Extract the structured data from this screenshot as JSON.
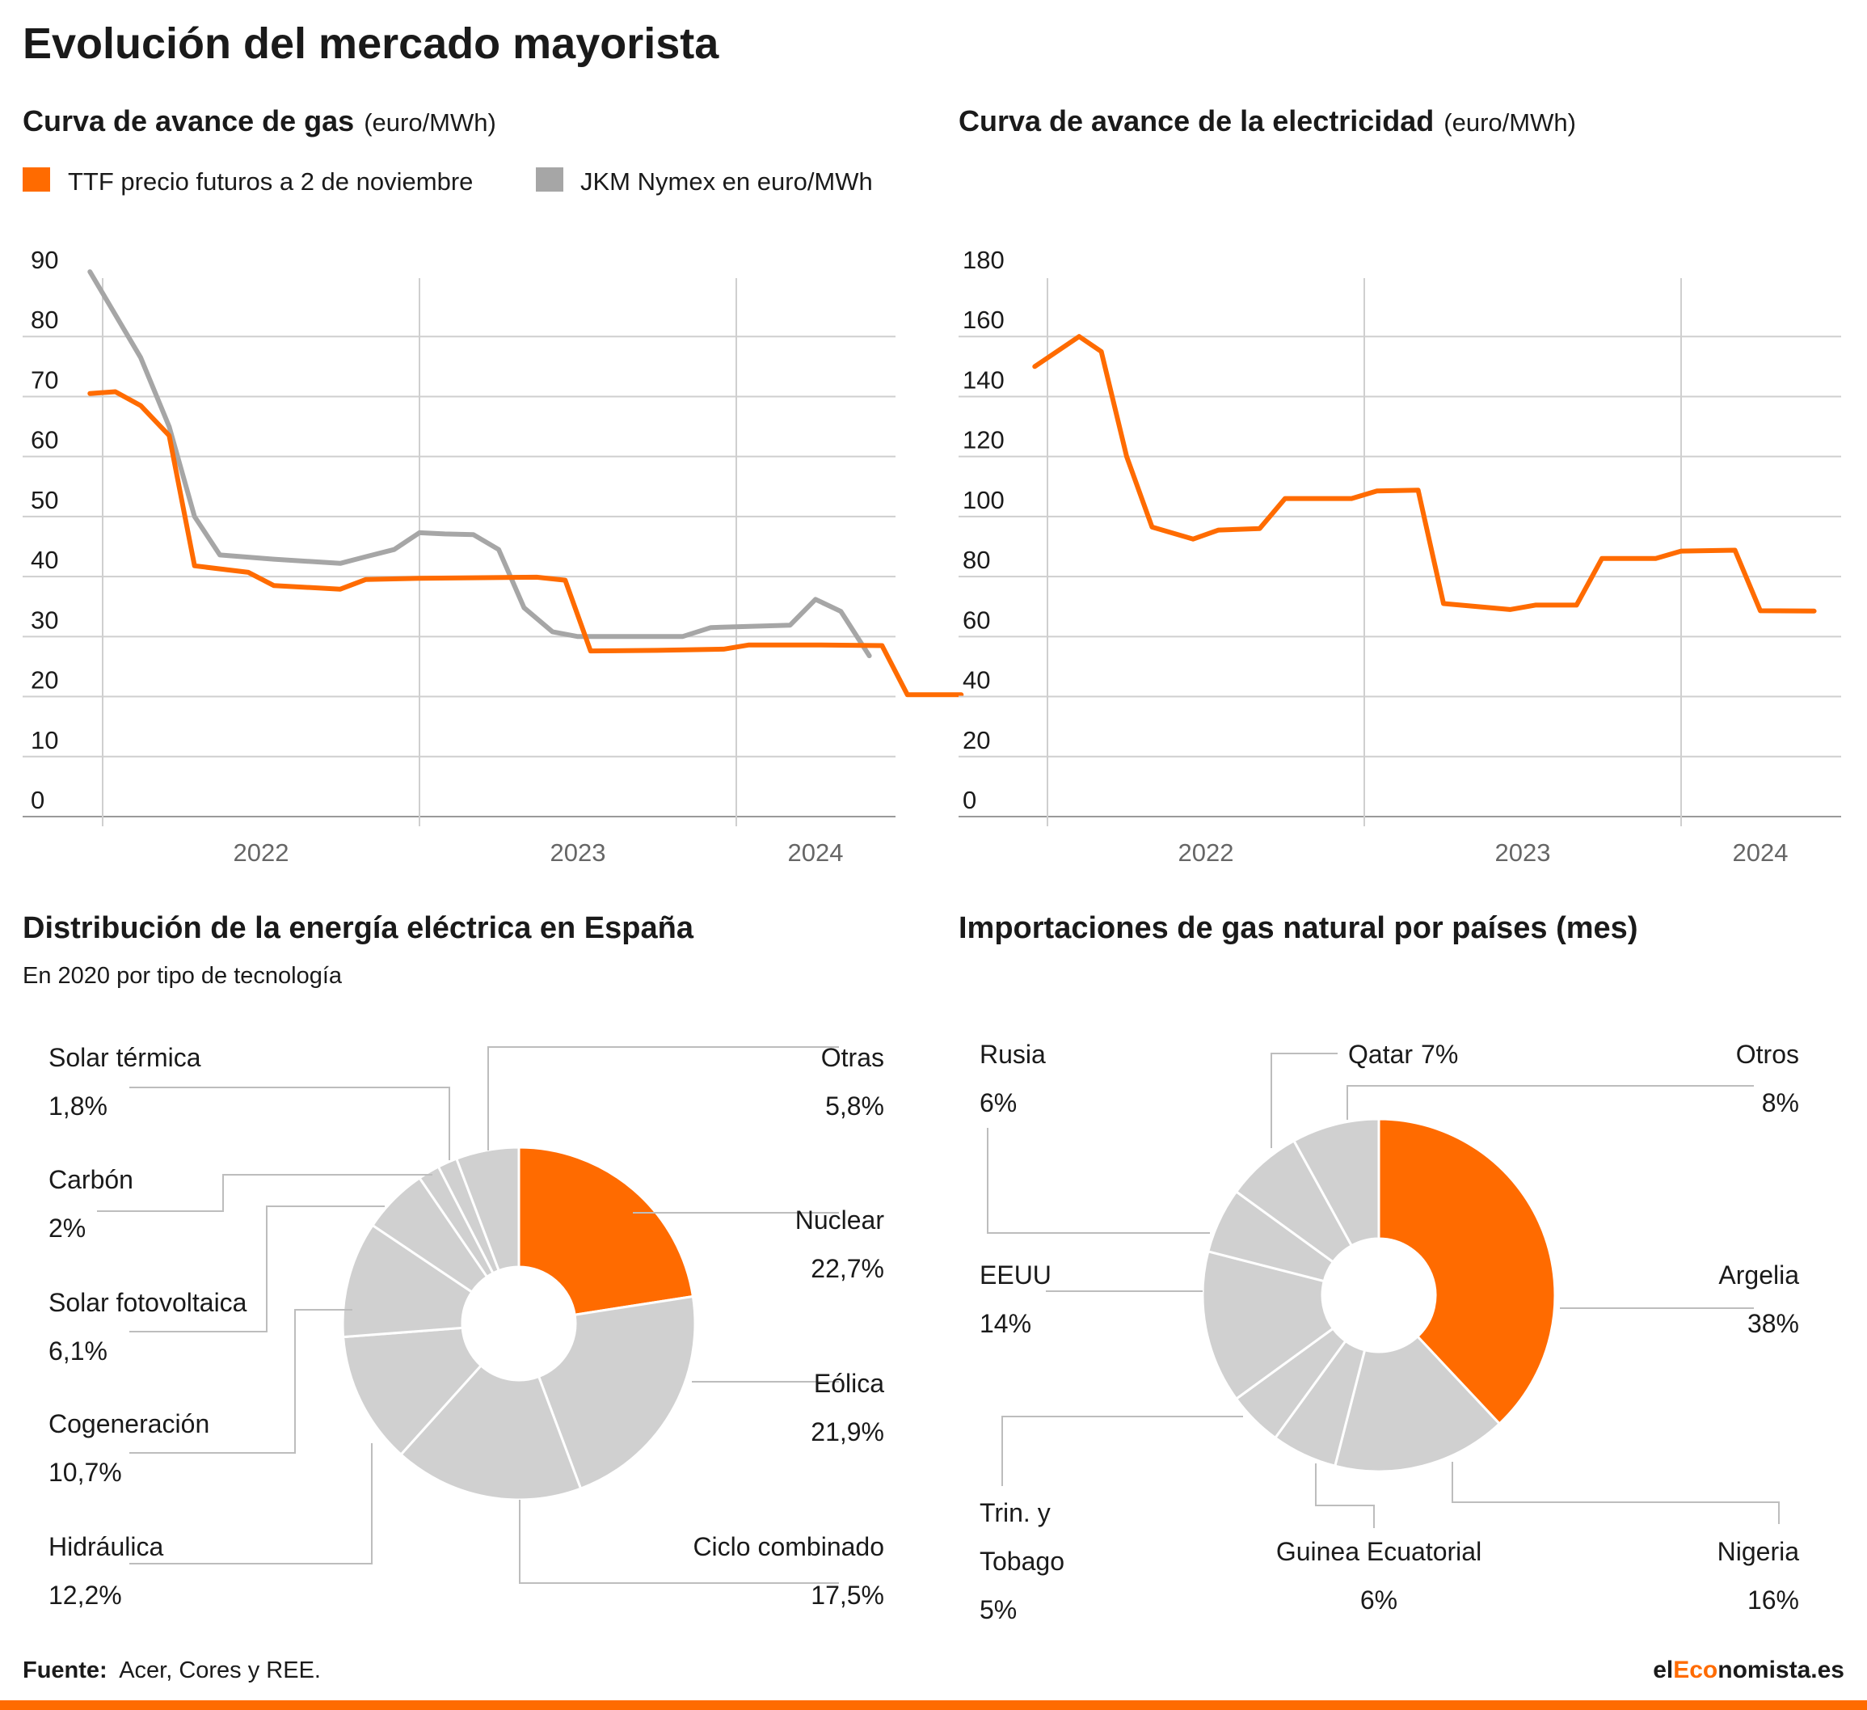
{
  "page": {
    "title": "Evolución del mercado mayorista",
    "source_label": "Fuente:",
    "source_text": "Acer, Cores y REE.",
    "brand_pre": "el",
    "brand_mid": "Eco",
    "brand_post": "nomista.es"
  },
  "colors": {
    "accent": "#ff6b00",
    "secondary": "#a6a6a6",
    "slice_gray": "#d0d0d0",
    "grid": "#cfcfcf",
    "text": "#1a1a1a"
  },
  "chart_data": [
    {
      "id": "gas",
      "type": "line",
      "title": "Curva de avance de gas",
      "unit": "(euro/MWh)",
      "ylim": [
        0,
        90
      ],
      "yticks": [
        "0",
        "10",
        "20",
        "30",
        "40",
        "50",
        "60",
        "70",
        "80",
        "90"
      ],
      "xlim": [
        2021.75,
        2024.25
      ],
      "xticks": [
        "2022",
        "2023",
        "2024"
      ],
      "grid": true,
      "legend_position": "top-left",
      "series": [
        {
          "name": "TTF precio futuros a 2 de noviembre",
          "color": "#ff6b00",
          "points": [
            [
              2021.71,
              70.5
            ],
            [
              2021.79,
              70.8
            ],
            [
              2021.87,
              68.5
            ],
            [
              2021.96,
              63.5
            ],
            [
              2022.04,
              41.8
            ],
            [
              2022.21,
              40.7
            ],
            [
              2022.29,
              38.5
            ],
            [
              2022.5,
              37.9
            ],
            [
              2022.58,
              39.5
            ],
            [
              2022.75,
              39.7
            ],
            [
              2022.92,
              39.8
            ],
            [
              2023.12,
              39.9
            ],
            [
              2023.21,
              39.4
            ],
            [
              2023.29,
              27.6
            ],
            [
              2023.5,
              27.7
            ],
            [
              2023.71,
              27.9
            ],
            [
              2023.79,
              28.6
            ],
            [
              2024.0,
              28.6
            ],
            [
              2024.21,
              28.5
            ],
            [
              2024.29,
              20.3
            ],
            [
              2024.46,
              20.3
            ]
          ]
        },
        {
          "name": "JKM Nymex en euro/MWh",
          "color": "#a6a6a6",
          "points": [
            [
              2021.71,
              90.8
            ],
            [
              2021.87,
              76.5
            ],
            [
              2021.96,
              65.0
            ],
            [
              2022.04,
              50.0
            ],
            [
              2022.12,
              43.6
            ],
            [
              2022.29,
              42.9
            ],
            [
              2022.5,
              42.2
            ],
            [
              2022.58,
              43.3
            ],
            [
              2022.67,
              44.5
            ],
            [
              2022.75,
              47.3
            ],
            [
              2022.83,
              47.1
            ],
            [
              2022.92,
              47.0
            ],
            [
              2023.0,
              44.5
            ],
            [
              2023.08,
              34.8
            ],
            [
              2023.17,
              30.8
            ],
            [
              2023.25,
              30.0
            ],
            [
              2023.5,
              30.0
            ],
            [
              2023.58,
              30.0
            ],
            [
              2023.67,
              31.5
            ],
            [
              2023.92,
              31.9
            ],
            [
              2024.0,
              36.2
            ],
            [
              2024.08,
              34.2
            ],
            [
              2024.17,
              26.8
            ]
          ]
        }
      ]
    },
    {
      "id": "elec",
      "type": "line",
      "title": "Curva de avance de la electricidad",
      "unit": "(euro/MWh)",
      "ylim": [
        0,
        180
      ],
      "yticks": [
        "0",
        "20",
        "40",
        "60",
        "80",
        "100",
        "120",
        "140",
        "160",
        "180"
      ],
      "xlim": [
        2021.75,
        2024.25
      ],
      "xticks": [
        "2022",
        "2023",
        "2024"
      ],
      "grid": true,
      "series": [
        {
          "name": "",
          "color": "#ff6b00",
          "points": [
            [
              2021.71,
              150.0
            ],
            [
              2021.85,
              160.0
            ],
            [
              2021.92,
              155.0
            ],
            [
              2022.0,
              120.0
            ],
            [
              2022.08,
              96.5
            ],
            [
              2022.21,
              92.5
            ],
            [
              2022.29,
              95.5
            ],
            [
              2022.42,
              96.0
            ],
            [
              2022.5,
              106.0
            ],
            [
              2022.71,
              106.0
            ],
            [
              2022.79,
              108.5
            ],
            [
              2022.92,
              108.8
            ],
            [
              2023.0,
              71.0
            ],
            [
              2023.21,
              69.0
            ],
            [
              2023.29,
              70.5
            ],
            [
              2023.42,
              70.5
            ],
            [
              2023.5,
              86.0
            ],
            [
              2023.67,
              86.0
            ],
            [
              2023.75,
              88.5
            ],
            [
              2023.92,
              88.8
            ],
            [
              2024.0,
              68.6
            ],
            [
              2024.17,
              68.5
            ]
          ]
        }
      ]
    },
    {
      "id": "energia",
      "type": "pie",
      "title": "Distribución de la energía eléctrica en España",
      "subtitle": "En 2020 por tipo de tecnología",
      "slices": [
        {
          "label": "Nuclear",
          "value_text": "22,7%",
          "value": 22.7,
          "highlight": true
        },
        {
          "label": "Eólica",
          "value_text": "21,9%",
          "value": 21.9
        },
        {
          "label": "Ciclo combinado",
          "value_text": "17,5%",
          "value": 17.5
        },
        {
          "label": "Hidráulica",
          "value_text": "12,2%",
          "value": 12.2
        },
        {
          "label": "Cogeneración",
          "value_text": "10,7%",
          "value": 10.7
        },
        {
          "label": "Solar fotovoltaica",
          "value_text": "6,1%",
          "value": 6.1
        },
        {
          "label": "Carbón",
          "value_text": "2%",
          "value": 2.0
        },
        {
          "label": "Solar térmica",
          "value_text": "1,8%",
          "value": 1.8
        },
        {
          "label": "Otras",
          "value_text": "5,8%",
          "value": 5.8
        }
      ]
    },
    {
      "id": "importaciones",
      "type": "pie",
      "title": "Importaciones de gas natural por países (mes)",
      "slices": [
        {
          "label": "Argelia",
          "value_text": "38%",
          "value": 38,
          "highlight": true
        },
        {
          "label": "Nigeria",
          "value_text": "16%",
          "value": 16
        },
        {
          "label": "Guinea Ecuatorial",
          "value_text": "6%",
          "value": 6
        },
        {
          "label": "Trin. y Tobago",
          "lines": [
            "Trin. y",
            "Tobago"
          ],
          "value_text": "5%",
          "value": 5
        },
        {
          "label": "EEUU",
          "value_text": "14%",
          "value": 14
        },
        {
          "label": "Rusia",
          "value_text": "6%",
          "value": 6
        },
        {
          "label": "Qatar",
          "value_text": "7%",
          "value": 7,
          "inline": true
        },
        {
          "label": "Otros",
          "value_text": "8%",
          "value": 8
        }
      ]
    }
  ]
}
